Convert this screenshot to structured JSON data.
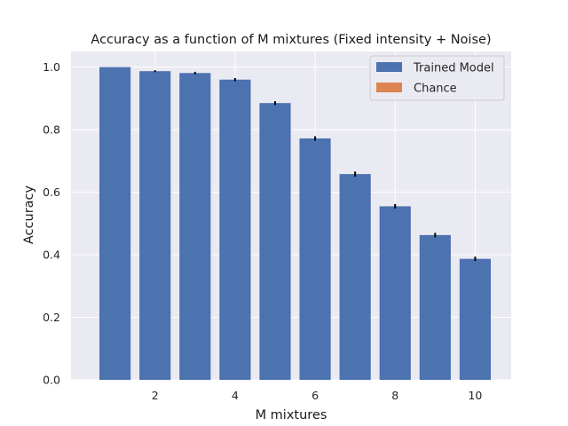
{
  "chart_data": {
    "type": "bar",
    "title": "Accuracy as a function of M mixtures (Fixed intensity + Noise)",
    "xlabel": "M mixtures",
    "ylabel": "Accuracy",
    "xlim": [
      -0.1,
      10.9
    ],
    "ylim": [
      0,
      1.05
    ],
    "xticks": [
      2,
      4,
      6,
      8,
      10
    ],
    "yticks": [
      0.0,
      0.2,
      0.4,
      0.6,
      0.8,
      1.0
    ],
    "ytick_labels": [
      "0.0",
      "0.2",
      "0.4",
      "0.6",
      "0.8",
      "1.0"
    ],
    "grid": true,
    "legend_position": "top-right",
    "series": [
      {
        "name": "Trained Model",
        "color": "#4c72b0",
        "x": [
          1,
          2,
          3,
          4,
          5,
          6,
          7,
          8,
          9,
          10
        ],
        "values": [
          1.0,
          0.987,
          0.981,
          0.96,
          0.885,
          0.772,
          0.658,
          0.555,
          0.463,
          0.387
        ],
        "errors": [
          0.0,
          0.003,
          0.004,
          0.005,
          0.006,
          0.007,
          0.008,
          0.007,
          0.007,
          0.007
        ]
      },
      {
        "name": "Chance",
        "color": "#dd8452",
        "x": [
          1,
          2,
          3,
          4,
          5,
          6,
          7,
          8,
          9,
          10
        ],
        "values": [
          0,
          0,
          0,
          0,
          0,
          0,
          0,
          0,
          0,
          0
        ]
      }
    ],
    "colors": {
      "background": "#eaeaf2",
      "grid": "#ffffff",
      "errorbar": "#000000"
    }
  }
}
